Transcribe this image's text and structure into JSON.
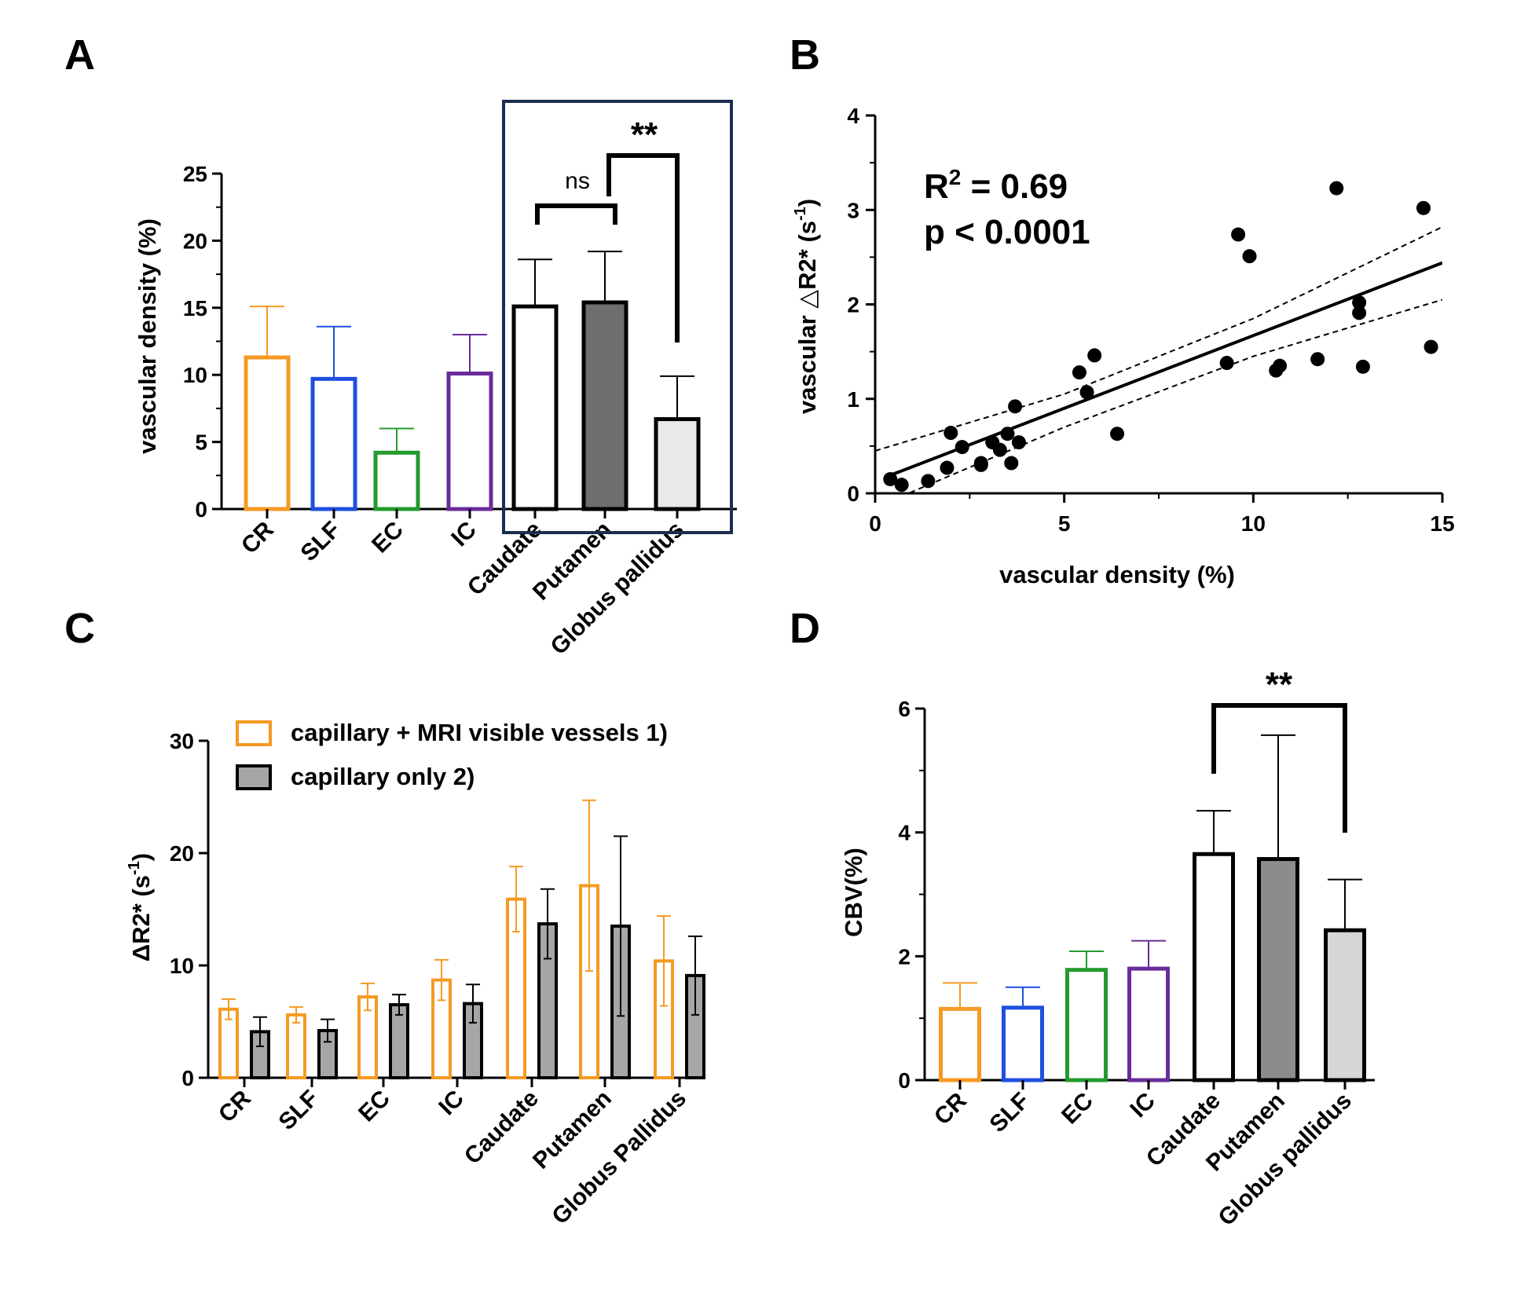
{
  "panel_labels": {
    "a": "A",
    "b": "B",
    "c": "C",
    "d": "D"
  },
  "colors": {
    "CR": "#F59A23",
    "SLF": "#1F4FE0",
    "EC": "#239A2E",
    "IC": "#6A2C9A",
    "box": "#1C2E50",
    "black": "#000000",
    "dark_gray": "#6E6E6E",
    "mid_gray": "#8C8C8C",
    "light_gray": "#E9E9E9",
    "gray_c": "#A6A6A6"
  },
  "chart_data": [
    {
      "panel": "A",
      "type": "bar",
      "ylabel": "vascular density (%)",
      "ylim": [
        0,
        25
      ],
      "yticks": [
        0,
        5,
        10,
        15,
        20,
        25
      ],
      "yticks_text": [
        "0",
        "5",
        "10",
        "15",
        "20",
        "25"
      ],
      "categories": [
        "CR",
        "SLF",
        "EC",
        "IC",
        "Caudate",
        "Putamen",
        "Globus pallidus"
      ],
      "values": [
        11.3,
        9.7,
        4.2,
        10.1,
        15.1,
        15.4,
        6.7
      ],
      "errors": [
        3.8,
        3.9,
        1.8,
        2.9,
        3.5,
        3.8,
        3.2
      ],
      "annotations": {
        "ns": "ns",
        "sig": "**"
      },
      "highlight_box": "Caudate–Globus pallidus"
    },
    {
      "panel": "B",
      "type": "scatter",
      "xlabel": "vascular density (%)",
      "ylabel_main": "vascular △R2* (s",
      "ylabel_sup": "-1",
      "ylabel_end": ")",
      "xlim": [
        0,
        15
      ],
      "ylim": [
        0,
        4
      ],
      "xticks": [
        0,
        5,
        10,
        15
      ],
      "xticks_text": [
        "0",
        "5",
        "10",
        "15"
      ],
      "yticks": [
        0,
        1,
        2,
        3,
        4
      ],
      "yticks_text": [
        "0",
        "1",
        "2",
        "3",
        "4"
      ],
      "r2_label": "R",
      "r2_sup": "2",
      "r2_value": " = 0.69",
      "p_text": "p  < 0.0001",
      "fit": {
        "slope": 0.154,
        "intercept": 0.13
      },
      "ci_upper": [
        [
          0,
          0.45
        ],
        [
          5,
          1.05
        ],
        [
          10,
          1.85
        ],
        [
          15,
          2.82
        ]
      ],
      "ci_lower": [
        [
          0,
          -0.15
        ],
        [
          5,
          0.7
        ],
        [
          10,
          1.45
        ],
        [
          15,
          2.05
        ]
      ],
      "points": [
        [
          0.4,
          0.15
        ],
        [
          0.7,
          0.09
        ],
        [
          1.4,
          0.13
        ],
        [
          1.9,
          0.27
        ],
        [
          2.0,
          0.64
        ],
        [
          2.3,
          0.49
        ],
        [
          2.8,
          0.3
        ],
        [
          2.8,
          0.32
        ],
        [
          3.1,
          0.54
        ],
        [
          3.3,
          0.46
        ],
        [
          3.5,
          0.63
        ],
        [
          3.6,
          0.32
        ],
        [
          3.7,
          0.92
        ],
        [
          3.8,
          0.54
        ],
        [
          5.4,
          1.28
        ],
        [
          5.6,
          1.07
        ],
        [
          5.8,
          1.46
        ],
        [
          6.4,
          0.63
        ],
        [
          9.3,
          1.38
        ],
        [
          9.6,
          2.74
        ],
        [
          9.9,
          2.51
        ],
        [
          10.6,
          1.3
        ],
        [
          10.7,
          1.35
        ],
        [
          11.7,
          1.42
        ],
        [
          12.2,
          3.23
        ],
        [
          12.8,
          2.02
        ],
        [
          12.8,
          1.91
        ],
        [
          12.9,
          1.34
        ],
        [
          14.5,
          3.02
        ],
        [
          14.7,
          1.55
        ]
      ]
    },
    {
      "panel": "C",
      "type": "bar",
      "ylabel_main": "ΔR2* (s",
      "ylabel_sup": "-1",
      "ylabel_end": ")",
      "ylim": [
        0,
        30
      ],
      "yticks": [
        0,
        10,
        20,
        30
      ],
      "yticks_text": [
        "0",
        "10",
        "20",
        "30"
      ],
      "categories": [
        "CR",
        "SLF",
        "EC",
        "IC",
        "Caudate",
        "Putamen",
        "Globus Pallidus"
      ],
      "series": [
        {
          "name": "capillary + MRI visible vessels  1)",
          "values": [
            6.1,
            5.6,
            7.2,
            8.7,
            15.9,
            17.1,
            10.4
          ],
          "errors": [
            0.9,
            0.7,
            1.2,
            1.8,
            2.9,
            7.6,
            4.0
          ]
        },
        {
          "name": "capillary only 2)",
          "values": [
            4.1,
            4.2,
            6.5,
            6.6,
            13.7,
            13.5,
            9.1
          ],
          "errors": [
            1.3,
            1.0,
            0.9,
            1.7,
            3.1,
            8.0,
            3.5
          ]
        }
      ]
    },
    {
      "panel": "D",
      "type": "bar",
      "ylabel": "CBV(%)",
      "ylim": [
        0,
        6
      ],
      "yticks": [
        0,
        2,
        4,
        6
      ],
      "yticks_text": [
        "0",
        "2",
        "4",
        "6"
      ],
      "categories": [
        "CR",
        "SLF",
        "EC",
        "IC",
        "Caudate",
        "Putamen",
        "Globus pallidus"
      ],
      "values": [
        1.15,
        1.17,
        1.78,
        1.8,
        3.65,
        3.57,
        2.42
      ],
      "errors": [
        0.42,
        0.33,
        0.3,
        0.45,
        0.7,
        2.0,
        0.82
      ],
      "annotations": {
        "sig": "**"
      }
    }
  ]
}
